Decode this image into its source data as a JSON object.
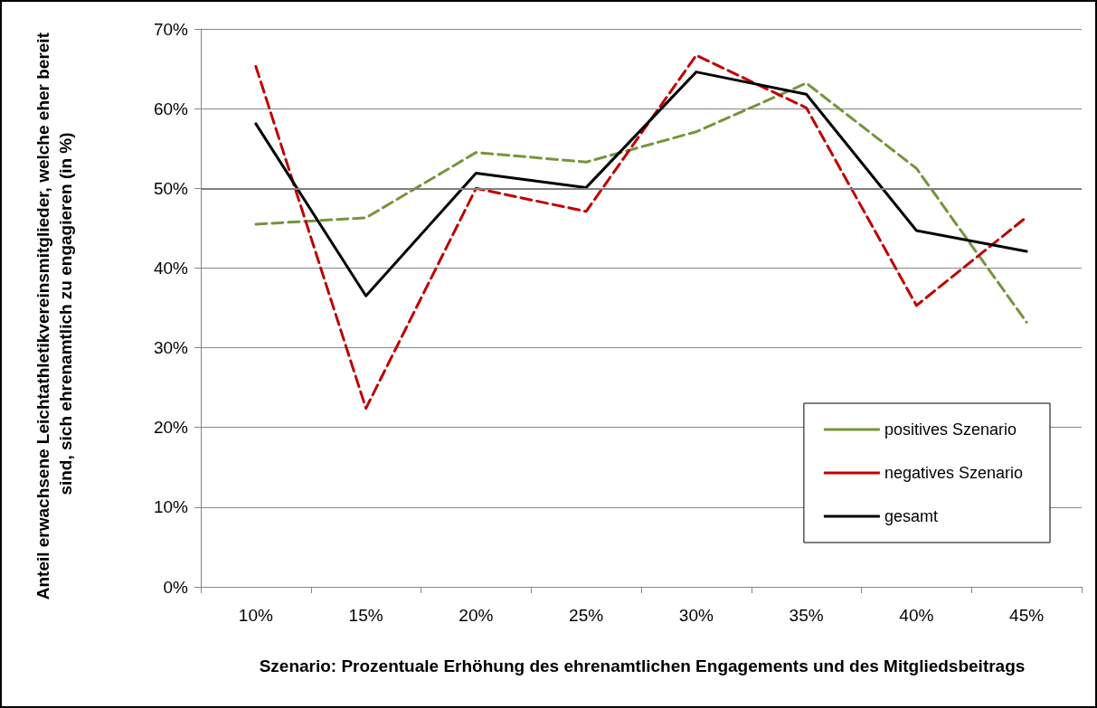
{
  "chart_data": {
    "type": "line",
    "xlabel": "Szenario: Prozentuale Erhöhung des ehrenamtlichen Engagements und des Mitgliedsbeitrags",
    "ylabel": "Anteil erwachsene Leichtathletikvereinsmitglieder, welche eher bereit sind, sich ehrenamtlich zu engagieren (in %)",
    "categories": [
      "10%",
      "15%",
      "20%",
      "25%",
      "30%",
      "35%",
      "40%",
      "45%"
    ],
    "series": [
      {
        "name": "positives Szenario",
        "color": "#77933c",
        "line_style": "dashed",
        "values": [
          45.5,
          46.3,
          54.5,
          53.3,
          57.1,
          63.2,
          52.5,
          33.2
        ]
      },
      {
        "name": "negatives Szenario",
        "color": "#c00000",
        "line_style": "dashed",
        "values": [
          65.3,
          22.4,
          50.0,
          47.1,
          66.7,
          60.1,
          35.3,
          46.4
        ]
      },
      {
        "name": "gesamt",
        "color": "#000000",
        "line_style": "solid",
        "values": [
          58.1,
          36.5,
          51.9,
          50.1,
          64.6,
          61.8,
          44.7,
          42.1
        ]
      }
    ],
    "ylim": [
      0,
      70
    ],
    "yticks": [
      {
        "value": 0,
        "label": "0%"
      },
      {
        "value": 10,
        "label": "10%"
      },
      {
        "value": 20,
        "label": "20%"
      },
      {
        "value": 30,
        "label": "30%"
      },
      {
        "value": 40,
        "label": "40%"
      },
      {
        "value": 50,
        "label": "50%"
      },
      {
        "value": 60,
        "label": "60%"
      },
      {
        "value": 70,
        "label": "70%"
      }
    ],
    "ref_lines": [
      {
        "axis": "y",
        "value": 50,
        "color": "#808080"
      }
    ],
    "grid": "y",
    "legend": "bottom right",
    "marker": "none"
  }
}
